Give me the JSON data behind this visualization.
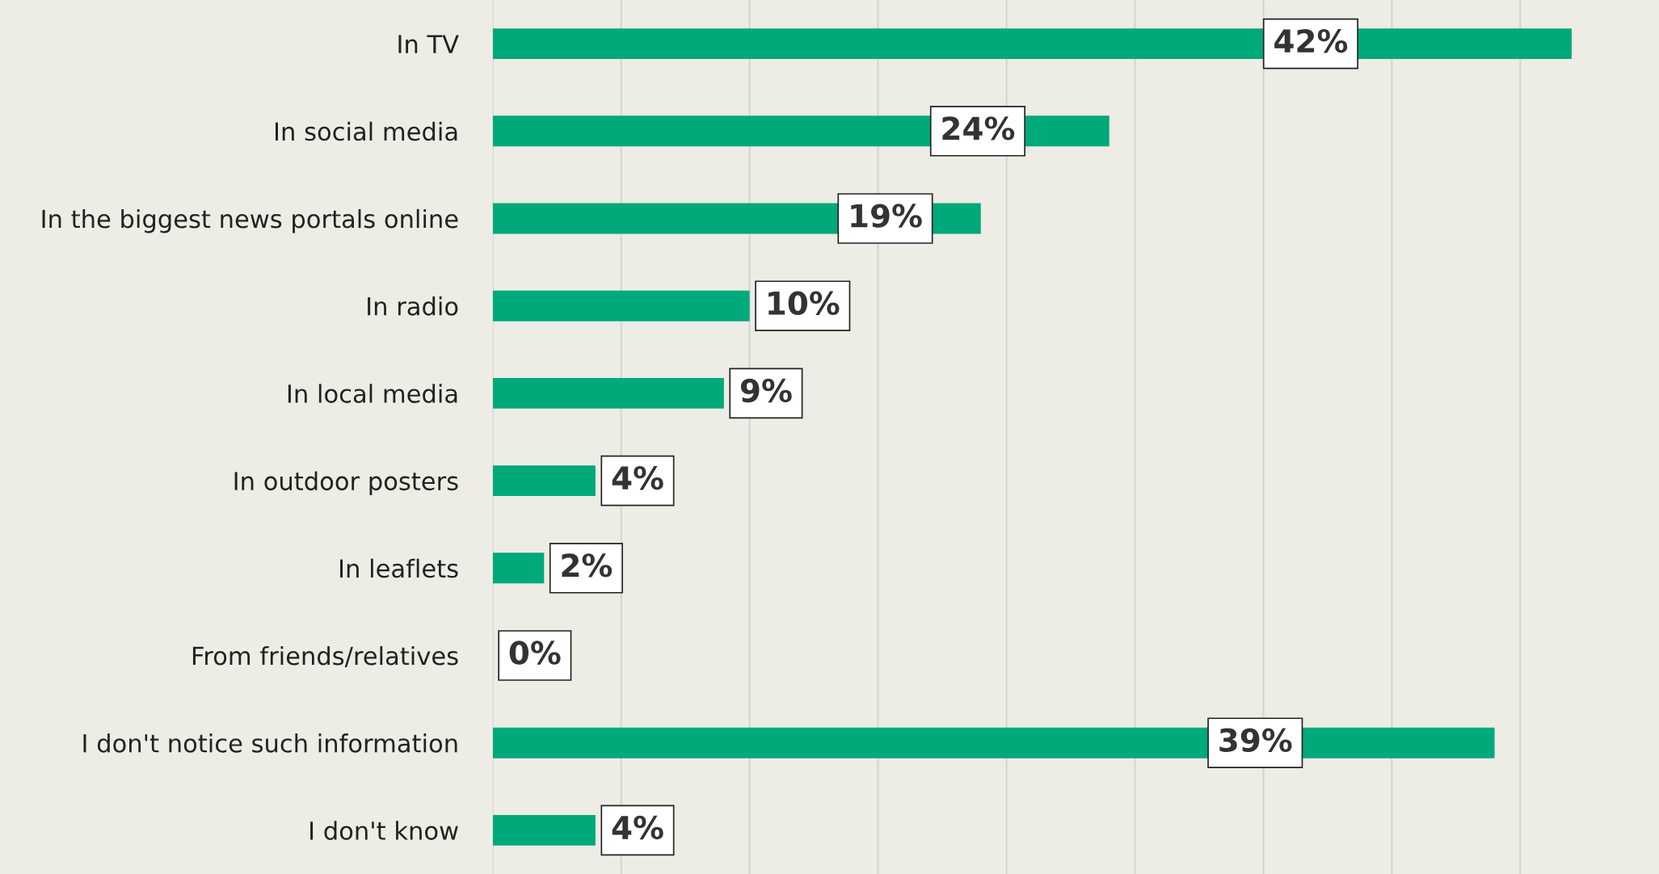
{
  "chart_data": {
    "type": "bar",
    "orientation": "horizontal",
    "categories": [
      "In TV",
      "In social media",
      "In the biggest news portals online",
      "In radio",
      "In local media",
      "In outdoor posters",
      "In leaflets",
      "From friends/relatives",
      "I don't notice such information",
      "I don't know"
    ],
    "values": [
      42,
      24,
      19,
      10,
      9,
      4,
      2,
      0,
      39,
      4
    ],
    "value_labels": [
      "42%",
      "24%",
      "19%",
      "10%",
      "9%",
      "4%",
      "2%",
      "0%",
      "39%",
      "4%"
    ],
    "color": "#00a97a",
    "xlim": [
      0,
      45.4
    ],
    "xticks": [
      {
        "value": 0,
        "label": null
      },
      {
        "value": 5,
        "label": null
      },
      {
        "value": 10,
        "label": null
      },
      {
        "value": 15,
        "label": null
      },
      {
        "value": 20,
        "label": null
      },
      {
        "value": 25,
        "label": null
      },
      {
        "value": 30,
        "label": null
      },
      {
        "value": 35,
        "label": null
      },
      {
        "value": 40,
        "label": null
      }
    ],
    "tick_labels": "y",
    "grid": "x"
  }
}
